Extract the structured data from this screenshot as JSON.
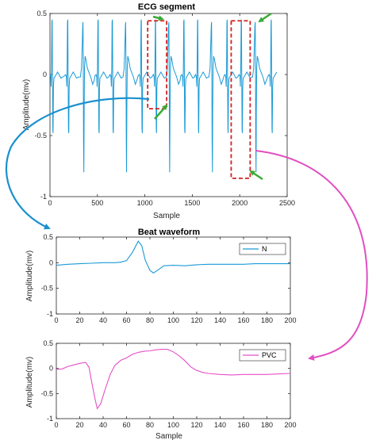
{
  "colors": {
    "ecg": "#1a9ad6",
    "normal_beat": "#1a9ad6",
    "pvc_beat": "#e64fc8",
    "box": "#d42020",
    "arrow_green": "#3aaa35",
    "connector_blue": "#1a90cf",
    "connector_pink": "#e14ec1",
    "axis": "#262626"
  },
  "chart_data": [
    {
      "id": "ecg",
      "type": "line",
      "title": "ECG segment",
      "xlabel": "Sample",
      "ylabel": "Amplitude(mv)",
      "xlim": [
        0,
        2500
      ],
      "ylim": [
        -1,
        0.5
      ],
      "xticks": [
        0,
        500,
        1000,
        1500,
        2000,
        2500
      ],
      "yticks": [
        -1,
        -0.5,
        0,
        0.5
      ],
      "beats": [
        {
          "x": 20,
          "kind": "N"
        },
        {
          "x": 185,
          "kind": "N"
        },
        {
          "x": 350,
          "kind": "V"
        },
        {
          "x": 505,
          "kind": "N"
        },
        {
          "x": 655,
          "kind": "N"
        },
        {
          "x": 800,
          "kind": "V"
        },
        {
          "x": 960,
          "kind": "N"
        },
        {
          "x": 1110,
          "kind": "N"
        },
        {
          "x": 1255,
          "kind": "V"
        },
        {
          "x": 1410,
          "kind": "N"
        },
        {
          "x": 1555,
          "kind": "N"
        },
        {
          "x": 1705,
          "kind": "V"
        },
        {
          "x": 1865,
          "kind": "N"
        },
        {
          "x": 2015,
          "kind": "N"
        },
        {
          "x": 2165,
          "kind": "V"
        },
        {
          "x": 2330,
          "kind": "N"
        }
      ],
      "highlight_boxes": [
        {
          "x": [
            1030,
            1230
          ],
          "y": [
            -0.28,
            0.44
          ],
          "label": "N"
        },
        {
          "x": [
            1910,
            2110
          ],
          "y": [
            -0.85,
            0.44
          ],
          "label": "PVC"
        }
      ]
    },
    {
      "id": "normal",
      "type": "line",
      "title": "Beat waveform",
      "xlabel": "",
      "ylabel": "Amplitude(mv)",
      "xlim": [
        0,
        200
      ],
      "ylim": [
        -1,
        0.5
      ],
      "xticks": [
        0,
        20,
        40,
        60,
        80,
        100,
        120,
        140,
        160,
        180,
        200
      ],
      "yticks": [
        -1,
        -0.5,
        0,
        0.5
      ],
      "legend": "N",
      "legend_position": "top-right",
      "points": [
        [
          0,
          -0.05
        ],
        [
          10,
          -0.03
        ],
        [
          20,
          -0.02
        ],
        [
          30,
          -0.01
        ],
        [
          40,
          0.0
        ],
        [
          50,
          0.0
        ],
        [
          55,
          0.01
        ],
        [
          60,
          0.04
        ],
        [
          65,
          0.2
        ],
        [
          70,
          0.42
        ],
        [
          73,
          0.33
        ],
        [
          76,
          0.05
        ],
        [
          80,
          -0.15
        ],
        [
          83,
          -0.2
        ],
        [
          87,
          -0.14
        ],
        [
          92,
          -0.06
        ],
        [
          100,
          -0.05
        ],
        [
          110,
          -0.06
        ],
        [
          120,
          -0.04
        ],
        [
          130,
          -0.03
        ],
        [
          140,
          -0.03
        ],
        [
          150,
          -0.03
        ],
        [
          160,
          -0.03
        ],
        [
          170,
          -0.02
        ],
        [
          180,
          -0.02
        ],
        [
          190,
          -0.02
        ],
        [
          200,
          -0.02
        ]
      ]
    },
    {
      "id": "pvc",
      "type": "line",
      "title": "",
      "xlabel": "Sample",
      "ylabel": "Amplitude(mv)",
      "xlim": [
        0,
        200
      ],
      "ylim": [
        -1,
        0.5
      ],
      "xticks": [
        0,
        20,
        40,
        60,
        80,
        100,
        120,
        140,
        160,
        180,
        200
      ],
      "yticks": [
        -1,
        -0.5,
        0,
        0.5
      ],
      "legend": "PVC",
      "legend_position": "top-right",
      "points": [
        [
          0,
          -0.02
        ],
        [
          5,
          -0.01
        ],
        [
          10,
          0.04
        ],
        [
          15,
          0.07
        ],
        [
          20,
          0.1
        ],
        [
          25,
          0.12
        ],
        [
          28,
          0.02
        ],
        [
          30,
          -0.25
        ],
        [
          33,
          -0.6
        ],
        [
          35,
          -0.8
        ],
        [
          38,
          -0.7
        ],
        [
          42,
          -0.4
        ],
        [
          46,
          -0.12
        ],
        [
          50,
          0.06
        ],
        [
          55,
          0.16
        ],
        [
          60,
          0.21
        ],
        [
          65,
          0.28
        ],
        [
          70,
          0.32
        ],
        [
          75,
          0.34
        ],
        [
          80,
          0.35
        ],
        [
          85,
          0.37
        ],
        [
          90,
          0.38
        ],
        [
          95,
          0.38
        ],
        [
          100,
          0.33
        ],
        [
          105,
          0.25
        ],
        [
          110,
          0.15
        ],
        [
          115,
          0.03
        ],
        [
          120,
          -0.04
        ],
        [
          125,
          -0.08
        ],
        [
          130,
          -0.1
        ],
        [
          140,
          -0.12
        ],
        [
          150,
          -0.13
        ],
        [
          160,
          -0.12
        ],
        [
          170,
          -0.12
        ],
        [
          180,
          -0.12
        ],
        [
          190,
          -0.11
        ],
        [
          200,
          -0.1
        ]
      ]
    }
  ]
}
